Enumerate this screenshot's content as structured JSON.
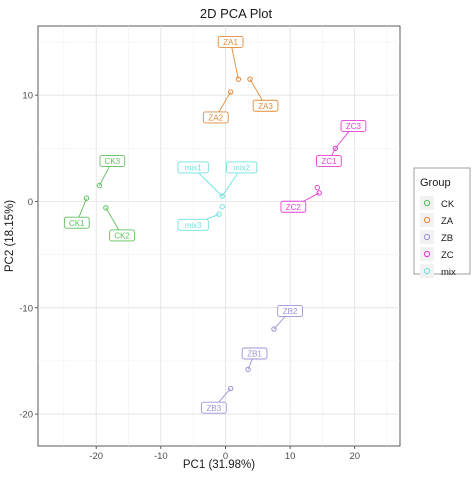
{
  "chart_data": {
    "type": "scatter",
    "title": "2D PCA Plot",
    "xlabel": "PC1 (31.98%)",
    "ylabel": "PC2 (18.15%)",
    "xlim": [
      -29,
      27
    ],
    "ylim": [
      -23,
      16.5
    ],
    "xticks": [
      -20,
      -10,
      0,
      10,
      20
    ],
    "yticks": [
      -20,
      -10,
      0,
      10
    ],
    "grid": true,
    "legend_position": "right",
    "legend_title": "Group",
    "series": [
      {
        "name": "CK",
        "color": "#5ec15e",
        "points": [
          {
            "label": "CK3",
            "x": -17.5,
            "y": 3.8
          },
          {
            "label": "",
            "x": -19.5,
            "y": 1.5
          },
          {
            "label": "",
            "x": -21.5,
            "y": 0.3
          },
          {
            "label": "CK1",
            "x": -23,
            "y": -2
          },
          {
            "label": "",
            "x": -18.5,
            "y": -0.6
          },
          {
            "label": "CK2",
            "x": -16,
            "y": -3.2
          }
        ]
      },
      {
        "name": "ZA",
        "color": "#e08a3c",
        "points": [
          {
            "label": "ZA1",
            "x": 0.8,
            "y": 15
          },
          {
            "label": "",
            "x": 2,
            "y": 11.5
          },
          {
            "label": "",
            "x": 0.8,
            "y": 10.3
          },
          {
            "label": "ZA2",
            "x": -1.5,
            "y": 7.9
          },
          {
            "label": "",
            "x": 3.8,
            "y": 11.5
          },
          {
            "label": "ZA3",
            "x": 6.2,
            "y": 9
          }
        ]
      },
      {
        "name": "ZB",
        "color": "#9f93d6",
        "points": [
          {
            "label": "ZB2",
            "x": 10,
            "y": -10.3
          },
          {
            "label": "",
            "x": 7.5,
            "y": -12
          },
          {
            "label": "ZB1",
            "x": 4.5,
            "y": -14.3
          },
          {
            "label": "",
            "x": 3.5,
            "y": -15.8
          },
          {
            "label": "",
            "x": 0.8,
            "y": -17.6
          },
          {
            "label": "ZB3",
            "x": -1.8,
            "y": -19.4
          }
        ]
      },
      {
        "name": "ZC",
        "color": "#e640d6",
        "points": [
          {
            "label": "ZC3",
            "x": 19.8,
            "y": 7.1
          },
          {
            "label": "",
            "x": 17,
            "y": 5
          },
          {
            "label": "ZC1",
            "x": 16,
            "y": 3.8
          },
          {
            "label": "",
            "x": 14.2,
            "y": 1.3
          },
          {
            "label": "",
            "x": 14.5,
            "y": 0.8
          },
          {
            "label": "ZC2",
            "x": 10.5,
            "y": -0.5
          }
        ]
      },
      {
        "name": "mix",
        "color": "#6fe3df",
        "points": [
          {
            "label": "mix1",
            "x": -5,
            "y": 3.2
          },
          {
            "label": "mix2",
            "x": 2.5,
            "y": 3.2
          },
          {
            "label": "",
            "x": -0.5,
            "y": 0.5
          },
          {
            "label": "",
            "x": -0.5,
            "y": -0.5
          },
          {
            "label": "",
            "x": -1,
            "y": -1.2
          },
          {
            "label": "mix3",
            "x": -5,
            "y": -2.2
          }
        ]
      }
    ]
  }
}
